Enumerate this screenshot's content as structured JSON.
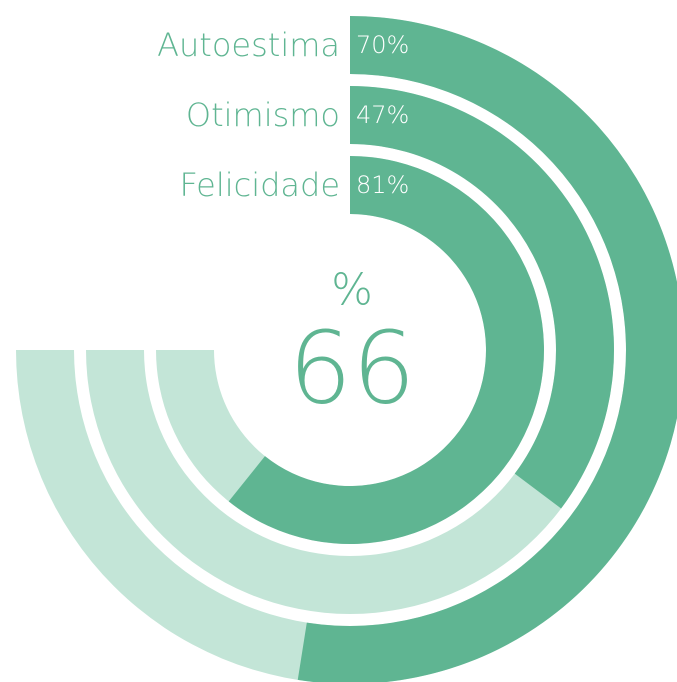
{
  "chart_data": {
    "type": "radialBar",
    "categories": [
      "Autoestima",
      "Otimismo",
      "Felicidade"
    ],
    "values": [
      70,
      47,
      81
    ],
    "value_labels": [
      "70%",
      "47%",
      "81%"
    ],
    "ylim": [
      0,
      100
    ],
    "color": "#5fb592",
    "track_color": "#c3e5d7",
    "center_label": "%",
    "center_value": 66
  }
}
